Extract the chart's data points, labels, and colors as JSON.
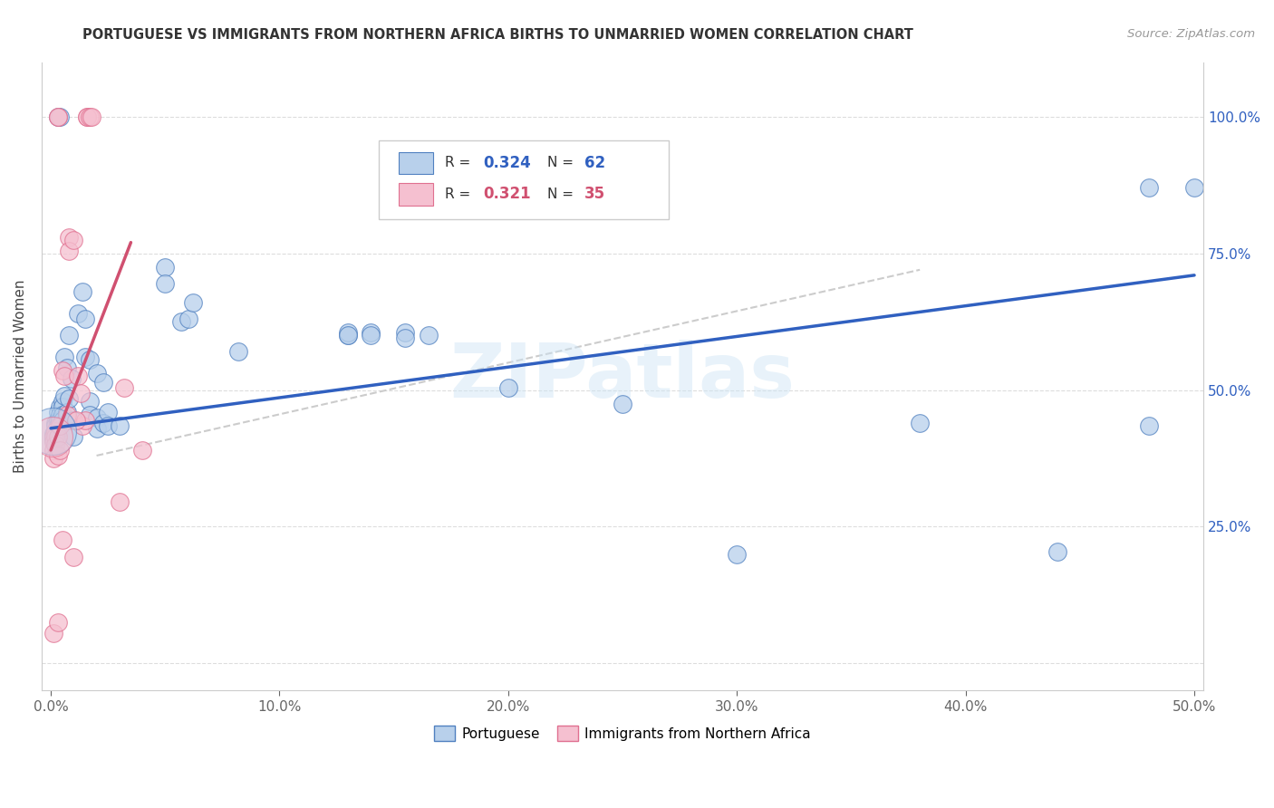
{
  "title": "PORTUGUESE VS IMMIGRANTS FROM NORTHERN AFRICA BIRTHS TO UNMARRIED WOMEN CORRELATION CHART",
  "source": "Source: ZipAtlas.com",
  "ylabel": "Births to Unmarried Women",
  "legend_blue_label": "Portuguese",
  "legend_pink_label": "Immigrants from Northern Africa",
  "watermark": "ZIPatlas",
  "blue_fill": "#b8d0eb",
  "pink_fill": "#f5c0d0",
  "blue_edge": "#5080c0",
  "pink_edge": "#e07090",
  "blue_line": "#3060c0",
  "pink_line": "#d05070",
  "diag_line_color": "#cccccc",
  "blue_scatter": [
    [
      0.001,
      0.42
    ],
    [
      0.001,
      0.415
    ],
    [
      0.001,
      0.41
    ],
    [
      0.002,
      0.44
    ],
    [
      0.002,
      0.435
    ],
    [
      0.002,
      0.425
    ],
    [
      0.002,
      0.415
    ],
    [
      0.003,
      0.46
    ],
    [
      0.003,
      0.445
    ],
    [
      0.003,
      0.435
    ],
    [
      0.004,
      0.47
    ],
    [
      0.004,
      0.455
    ],
    [
      0.004,
      0.445
    ],
    [
      0.005,
      0.48
    ],
    [
      0.005,
      0.47
    ],
    [
      0.005,
      0.455
    ],
    [
      0.005,
      0.445
    ],
    [
      0.006,
      0.56
    ],
    [
      0.006,
      0.49
    ],
    [
      0.007,
      0.54
    ],
    [
      0.007,
      0.46
    ],
    [
      0.008,
      0.6
    ],
    [
      0.008,
      0.485
    ],
    [
      0.009,
      0.52
    ],
    [
      0.01,
      0.445
    ],
    [
      0.01,
      0.415
    ],
    [
      0.012,
      0.64
    ],
    [
      0.014,
      0.68
    ],
    [
      0.015,
      0.63
    ],
    [
      0.015,
      0.56
    ],
    [
      0.017,
      0.555
    ],
    [
      0.017,
      0.48
    ],
    [
      0.017,
      0.455
    ],
    [
      0.02,
      0.53
    ],
    [
      0.02,
      0.45
    ],
    [
      0.02,
      0.43
    ],
    [
      0.023,
      0.515
    ],
    [
      0.023,
      0.44
    ],
    [
      0.025,
      0.46
    ],
    [
      0.025,
      0.435
    ],
    [
      0.03,
      0.435
    ],
    [
      0.05,
      0.725
    ],
    [
      0.05,
      0.695
    ],
    [
      0.057,
      0.625
    ],
    [
      0.06,
      0.63
    ],
    [
      0.062,
      0.66
    ],
    [
      0.082,
      0.57
    ],
    [
      0.13,
      0.6
    ],
    [
      0.13,
      0.605
    ],
    [
      0.13,
      0.6
    ],
    [
      0.14,
      0.605
    ],
    [
      0.14,
      0.6
    ],
    [
      0.155,
      0.605
    ],
    [
      0.155,
      0.595
    ],
    [
      0.165,
      0.6
    ],
    [
      0.2,
      0.505
    ],
    [
      0.25,
      0.475
    ],
    [
      0.3,
      0.2
    ],
    [
      0.38,
      0.44
    ],
    [
      0.44,
      0.205
    ],
    [
      0.48,
      0.435
    ],
    [
      0.48,
      0.87
    ],
    [
      0.5,
      0.87
    ],
    [
      0.003,
      1.0
    ],
    [
      0.004,
      1.0
    ]
  ],
  "pink_scatter": [
    [
      0.001,
      0.415
    ],
    [
      0.001,
      0.405
    ],
    [
      0.001,
      0.39
    ],
    [
      0.001,
      0.375
    ],
    [
      0.002,
      0.425
    ],
    [
      0.002,
      0.415
    ],
    [
      0.002,
      0.4
    ],
    [
      0.003,
      0.415
    ],
    [
      0.003,
      0.38
    ],
    [
      0.004,
      0.435
    ],
    [
      0.004,
      0.39
    ],
    [
      0.005,
      0.535
    ],
    [
      0.006,
      0.525
    ],
    [
      0.007,
      0.455
    ],
    [
      0.008,
      0.78
    ],
    [
      0.008,
      0.755
    ],
    [
      0.01,
      0.775
    ],
    [
      0.012,
      0.525
    ],
    [
      0.013,
      0.495
    ],
    [
      0.014,
      0.435
    ],
    [
      0.015,
      0.445
    ],
    [
      0.016,
      1.0
    ],
    [
      0.016,
      1.0
    ],
    [
      0.017,
      1.0
    ],
    [
      0.018,
      1.0
    ],
    [
      0.03,
      0.295
    ],
    [
      0.032,
      0.505
    ],
    [
      0.04,
      0.39
    ],
    [
      0.005,
      0.225
    ],
    [
      0.01,
      0.195
    ],
    [
      0.001,
      0.055
    ],
    [
      0.003,
      0.075
    ],
    [
      0.011,
      0.445
    ],
    [
      0.003,
      1.0
    ],
    [
      0.003,
      1.0
    ]
  ],
  "blue_trend": [
    0.0,
    0.43,
    0.5,
    0.71
  ],
  "pink_trend": [
    0.0,
    0.39,
    0.035,
    0.77
  ],
  "diag_line": [
    0.02,
    0.38,
    0.38,
    0.72
  ],
  "xlim": [
    -0.004,
    0.504
  ],
  "ylim": [
    -0.05,
    1.1
  ],
  "xticks": [
    0.0,
    0.1,
    0.2,
    0.3,
    0.4,
    0.5
  ],
  "xtick_labels": [
    "0.0%",
    "10.0%",
    "20.0%",
    "30.0%",
    "40.0%",
    "50.0%"
  ],
  "yticks": [
    0.0,
    0.25,
    0.5,
    0.75,
    1.0
  ],
  "ytick_labels_right": [
    "",
    "25.0%",
    "50.0%",
    "75.0%",
    "100.0%"
  ]
}
